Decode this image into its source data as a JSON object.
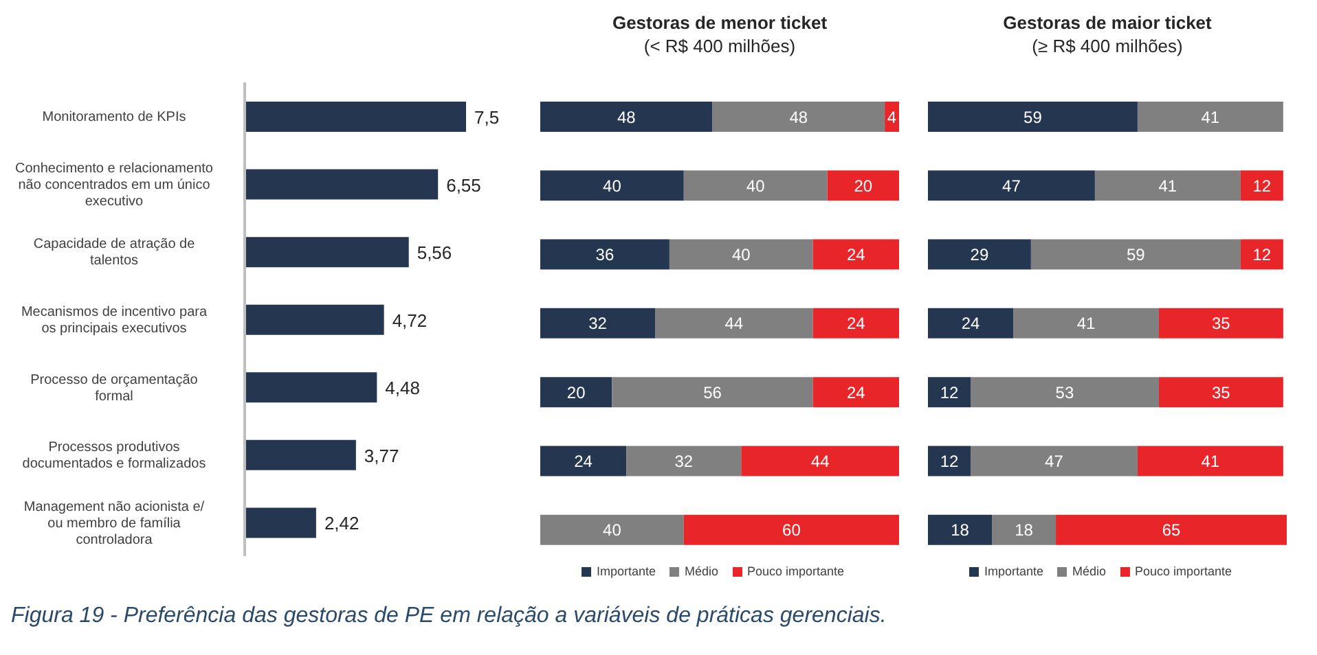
{
  "chart_data": [
    {
      "type": "bar",
      "orientation": "horizontal",
      "categories": [
        "Monitoramento de KPIs",
        "Conhecimento e relacionamento não concentrados em um único executivo",
        "Capacidade de atração de talentos",
        "Mecanismos de incentivo para os principais executivos",
        "Processo de orçamentação formal",
        "Processos produtivos documentados e formalizados",
        "Management não acionista e/ ou membro de família controladora"
      ],
      "values": [
        7.5,
        6.55,
        5.56,
        4.72,
        4.48,
        3.77,
        2.42
      ],
      "value_labels": [
        "7,5",
        "6,55",
        "5,56",
        "4,72",
        "4,48",
        "3,77",
        "2,42"
      ],
      "color": "#253750",
      "tick_labels": "y",
      "legend": false,
      "annotations": [
        "Figura 19 - Preferência das gestoras de PE em relação a variáveis de práticas gerenciais."
      ]
    },
    {
      "type": "bar",
      "orientation": "horizontal",
      "stacked": true,
      "title": "Gestoras de menor ticket",
      "subtitle": "(< R$ 400 milhões)",
      "categories": [
        null,
        null,
        null,
        null,
        null,
        null,
        null
      ],
      "tick_labels": false,
      "data_labels": true,
      "legend": "bottom",
      "series": [
        {
          "name": "Importante",
          "color": "#253750",
          "values": [
            48,
            40,
            36,
            32,
            20,
            24,
            null
          ]
        },
        {
          "name": "Médio",
          "color": "#808080",
          "values": [
            48,
            40,
            40,
            44,
            56,
            32,
            40
          ]
        },
        {
          "name": "Pouco importante",
          "color": "#e8262a",
          "values": [
            4,
            20,
            24,
            24,
            24,
            44,
            60
          ]
        }
      ]
    },
    {
      "type": "bar",
      "orientation": "horizontal",
      "stacked": true,
      "title": "Gestoras de maior ticket",
      "subtitle": "(≥ R$ 400 milhões)",
      "categories": [
        null,
        null,
        null,
        null,
        null,
        null,
        null
      ],
      "tick_labels": false,
      "data_labels": true,
      "legend": "bottom",
      "series": [
        {
          "name": "Importante",
          "color": "#253750",
          "values": [
            59,
            47,
            29,
            24,
            12,
            12,
            18
          ]
        },
        {
          "name": "Médio",
          "color": "#808080",
          "values": [
            41,
            41,
            59,
            41,
            53,
            47,
            18
          ]
        },
        {
          "name": "Pouco importante",
          "color": "#e8262a",
          "values": [
            null,
            12,
            12,
            35,
            35,
            41,
            65
          ]
        }
      ]
    }
  ]
}
